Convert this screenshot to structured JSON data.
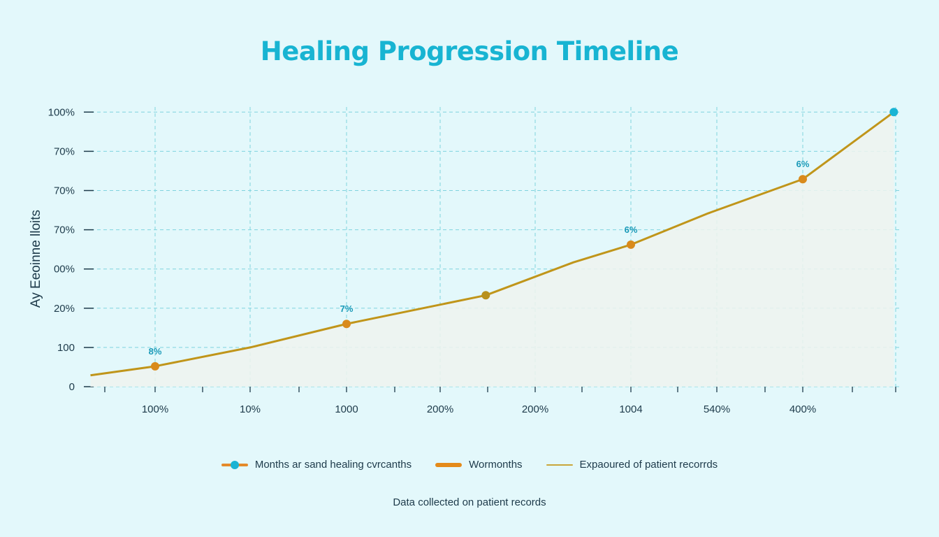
{
  "chart_data": {
    "type": "area",
    "title": "Healing Progression Timeline",
    "ylabel": "Ay Eeoinne lloits",
    "xlabel": "",
    "y_tick_labels": [
      "0",
      "100",
      "20%",
      "00%",
      "70%",
      "70%",
      "70%",
      "100%"
    ],
    "x_tick_labels": [
      "100%",
      "10%",
      "1000",
      "200%",
      "200%",
      "1004",
      "540%",
      "400%"
    ],
    "grid": true,
    "legend_placement": "bottom",
    "note": "y and x values are given in tick-position units (0 = first tick label, 1 = second, ...) because the printed tick labels are non-monotonic",
    "series": [
      {
        "name": "Months ar sand healing cvrcanths",
        "x": [
          -0.68,
          0,
          1,
          2,
          3.48,
          4.4,
          5,
          5.9,
          7,
          7.98
        ],
        "y": [
          0.29,
          0.52,
          1.0,
          1.6,
          2.33,
          3.17,
          3.62,
          4.42,
          5.29,
          7.0
        ]
      }
    ],
    "markers": [
      {
        "x": 0,
        "y": 0.52,
        "label": "8%",
        "color": "#d98a1c"
      },
      {
        "x": 2,
        "y": 1.6,
        "label": "7%",
        "color": "#d98a1c"
      },
      {
        "x": 3.48,
        "y": 2.33,
        "label": "",
        "color": "#b8901c"
      },
      {
        "x": 5,
        "y": 3.62,
        "label": "6%",
        "color": "#d98a1c"
      },
      {
        "x": 7,
        "y": 5.29,
        "label": "6%",
        "color": "#d98a1c"
      },
      {
        "x": 7.98,
        "y": 7.0,
        "label": "",
        "color": "#1ab4d4"
      }
    ],
    "legend": [
      {
        "label": "Months ar sand healing cvrcanths",
        "style": "line-dot"
      },
      {
        "label": "Wormonths",
        "style": "thick-bar"
      },
      {
        "label": "Expaoured of patient recorrds",
        "style": "thin-line"
      }
    ],
    "footnote": "Data collected on patient records",
    "colors": {
      "line": "#c0951a",
      "marker": "#d98a1c",
      "endpoint": "#1ab4d4",
      "grid": "#7fd3de",
      "title": "#18b4d2",
      "fill": "#eef3ee",
      "background": "#e3f8fb"
    }
  }
}
